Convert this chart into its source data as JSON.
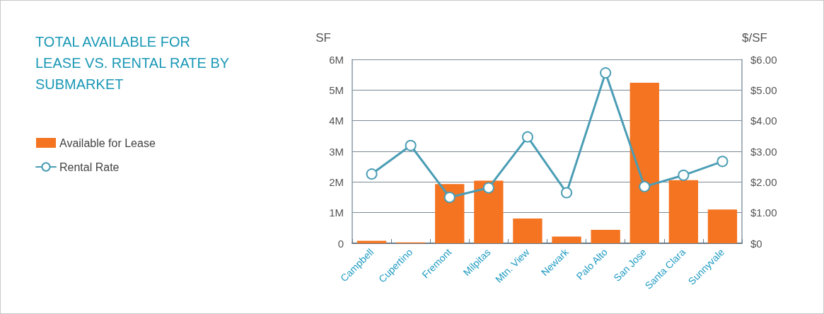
{
  "chart_data": {
    "type": "bar",
    "title": "TOTAL AVAILABLE FOR LEASE VS. RENTAL RATE BY SUBMARKET",
    "ylabel": "SF",
    "y2label": "$/SF",
    "categories": [
      "Campbell",
      "Cupertino",
      "Fremont",
      "Milpitas",
      "Mtn. View",
      "Newark",
      "Palo Alto",
      "San Jose",
      "Santa Clara",
      "Sunnyvale"
    ],
    "series": [
      {
        "name": "Available for Lease",
        "type": "bar",
        "color": "#f47421",
        "values": [
          80000,
          30000,
          1930000,
          2040000,
          810000,
          220000,
          440000,
          5240000,
          2060000,
          1100000
        ]
      },
      {
        "name": "Rental Rate",
        "type": "line",
        "axis": "y2",
        "color": "#4a9db5",
        "values": [
          2.26,
          3.19,
          1.5,
          1.81,
          3.47,
          1.65,
          5.56,
          1.85,
          2.22,
          2.67
        ]
      }
    ],
    "ylim": [
      0,
      6000000
    ],
    "yticks": [
      0,
      {
        "value": 1000000,
        "label": "1M"
      },
      {
        "value": 2000000,
        "label": "2M"
      },
      {
        "value": 3000000,
        "label": "3M"
      },
      {
        "value": 4000000,
        "label": "4M"
      },
      {
        "value": 5000000,
        "label": "5M"
      },
      {
        "value": 6000000,
        "label": "6M"
      }
    ],
    "y2lim": [
      0,
      6
    ],
    "y2ticks": [
      {
        "value": 0,
        "label": "$0"
      },
      {
        "value": 1,
        "label": "$1.00"
      },
      {
        "value": 2,
        "label": "$2.00"
      },
      {
        "value": 3,
        "label": "$3.00"
      },
      {
        "value": 4,
        "label": "$4.00"
      },
      {
        "value": 5,
        "label": "$5.00"
      },
      {
        "value": 6,
        "label": "$6.00"
      }
    ],
    "grid": "y",
    "legend": "left",
    "marker": "circle",
    "line_style": "solid"
  }
}
